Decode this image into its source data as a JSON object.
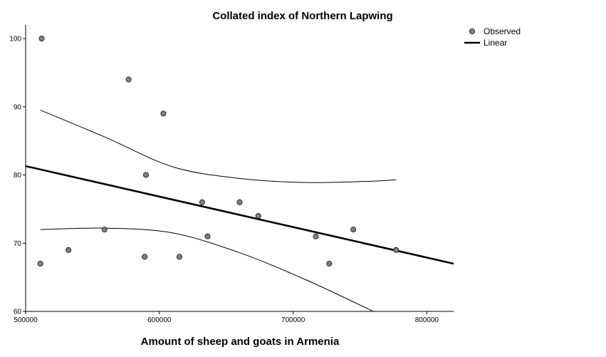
{
  "chart_data": {
    "type": "scatter",
    "title": "Collated index of Northern Lapwing",
    "xlabel": "Amount of sheep and goats in Armenia",
    "ylabel": "",
    "xlim": [
      500000,
      820000
    ],
    "ylim": [
      60,
      102
    ],
    "x_ticks": [
      500000,
      600000,
      700000,
      800000
    ],
    "x_tick_labels": [
      "500000",
      "600000",
      "700000",
      "800000"
    ],
    "y_ticks": [
      60,
      70,
      80,
      90,
      100
    ],
    "y_tick_labels": [
      "60",
      "70",
      "80",
      "90",
      "100"
    ],
    "grid": false,
    "legend": {
      "position": "top-right",
      "entries": [
        {
          "label": "Observed",
          "marker": "circle",
          "color": "#7f7f7f"
        },
        {
          "label": "Linear",
          "marker": "line",
          "color": "#000000"
        }
      ]
    },
    "series": [
      {
        "name": "Observed",
        "type": "scatter",
        "color": "#7f7f7f",
        "points": [
          {
            "x": 512000,
            "y": 100
          },
          {
            "x": 511000,
            "y": 67
          },
          {
            "x": 532000,
            "y": 69
          },
          {
            "x": 559000,
            "y": 72
          },
          {
            "x": 577000,
            "y": 94
          },
          {
            "x": 589000,
            "y": 68
          },
          {
            "x": 590000,
            "y": 80
          },
          {
            "x": 603000,
            "y": 89
          },
          {
            "x": 615000,
            "y": 68
          },
          {
            "x": 632000,
            "y": 76
          },
          {
            "x": 636000,
            "y": 71
          },
          {
            "x": 660000,
            "y": 76
          },
          {
            "x": 674000,
            "y": 74
          },
          {
            "x": 717000,
            "y": 71
          },
          {
            "x": 727000,
            "y": 67
          },
          {
            "x": 745000,
            "y": 72
          },
          {
            "x": 777000,
            "y": 69
          }
        ]
      },
      {
        "name": "Linear",
        "type": "line",
        "color": "#000000",
        "points": [
          {
            "x": 500000,
            "y": 81.3
          },
          {
            "x": 820000,
            "y": 67.0
          }
        ]
      },
      {
        "type": "line",
        "role": "upper confidence band",
        "color": "#000000",
        "points": [
          {
            "x": 511000,
            "y": 89.5
          },
          {
            "x": 560000,
            "y": 85.5
          },
          {
            "x": 610000,
            "y": 81.2
          },
          {
            "x": 660000,
            "y": 79.5
          },
          {
            "x": 710000,
            "y": 78.9
          },
          {
            "x": 760000,
            "y": 79.1
          },
          {
            "x": 777000,
            "y": 79.3
          }
        ]
      },
      {
        "type": "line",
        "role": "lower confidence band",
        "color": "#000000",
        "points": [
          {
            "x": 511000,
            "y": 72.0
          },
          {
            "x": 560000,
            "y": 72.2
          },
          {
            "x": 610000,
            "y": 71.5
          },
          {
            "x": 660000,
            "y": 68.6
          },
          {
            "x": 710000,
            "y": 64.6
          },
          {
            "x": 760000,
            "y": 60.0
          }
        ]
      }
    ]
  }
}
